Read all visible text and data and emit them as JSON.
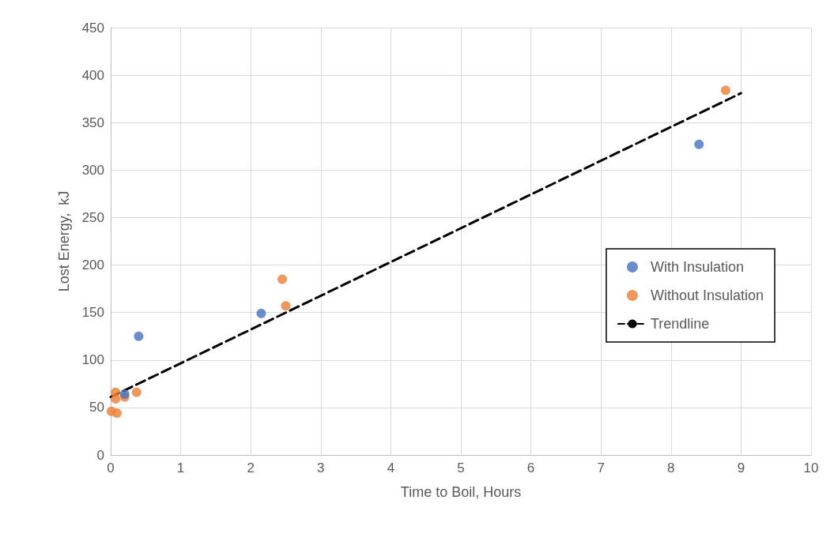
{
  "chart_data": {
    "type": "scatter",
    "xlabel": "Time to Boil, Hours",
    "ylabel": "Lost Energy,  kJ",
    "xlim": [
      0,
      10
    ],
    "ylim": [
      0,
      450
    ],
    "xticks": [
      0,
      1,
      2,
      3,
      4,
      5,
      6,
      7,
      8,
      9,
      10
    ],
    "yticks": [
      0,
      50,
      100,
      150,
      200,
      250,
      300,
      350,
      400,
      450
    ],
    "grid": true,
    "legend": "right",
    "marker": "circle",
    "series": [
      {
        "name": "With Insulation",
        "color": "#4472c4",
        "x": [
          0.4,
          0.2,
          2.15,
          8.4
        ],
        "values": [
          125,
          64,
          149,
          327
        ]
      },
      {
        "name": "Without Insulation",
        "color": "#ed7d31",
        "x": [
          0.07,
          0.07,
          0.2,
          0.37,
          0.01,
          0.09,
          2.45,
          2.5,
          8.78
        ],
        "values": [
          66,
          59,
          61,
          66,
          46,
          44,
          185,
          157,
          384
        ]
      },
      {
        "name": "Trendline",
        "type": "line",
        "color": "#000000",
        "line_style": "dashed",
        "marker": "none",
        "x": [
          0,
          9
        ],
        "values": [
          61,
          381
        ]
      }
    ]
  }
}
